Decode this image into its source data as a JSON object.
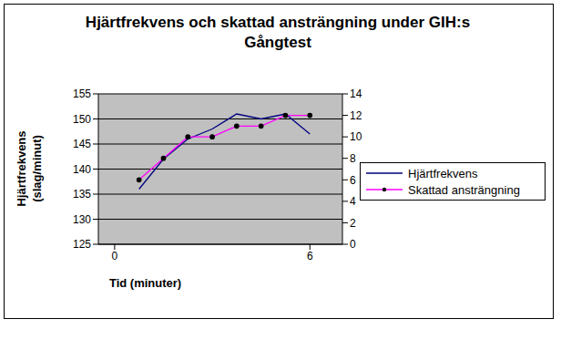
{
  "chart_data": {
    "type": "line",
    "title": "Hjärtfrekvens och skattad ansträngning under GIH:s Gångtest",
    "x_label": "Tid (minuter)",
    "y_label": "Hjärtfrekvens (slag/minut)",
    "x": [
      0.75,
      1.5,
      2.25,
      3,
      3.75,
      4.5,
      5.25,
      6
    ],
    "xlim": [
      -0.5,
      7
    ],
    "xticks": [
      0,
      6
    ],
    "ylim": [
      125,
      155
    ],
    "yticks": [
      125,
      130,
      135,
      140,
      145,
      150,
      155
    ],
    "y2lim": [
      0,
      14
    ],
    "y2ticks": [
      0,
      2,
      4,
      6,
      8,
      10,
      12,
      14
    ],
    "grid": true,
    "legend": "right",
    "series": [
      {
        "name": "Hjärtfrekvens",
        "color": "#000080",
        "line_style": "solid",
        "values": [
          136,
          142,
          146,
          148,
          151,
          150,
          151,
          147
        ]
      },
      {
        "name": "Skattad ansträngning",
        "color": "#ff00ff",
        "line_style": "solid",
        "marker": "circle",
        "axis": "y2",
        "values": [
          6,
          8,
          10,
          10,
          11,
          11,
          12,
          12
        ]
      }
    ]
  }
}
